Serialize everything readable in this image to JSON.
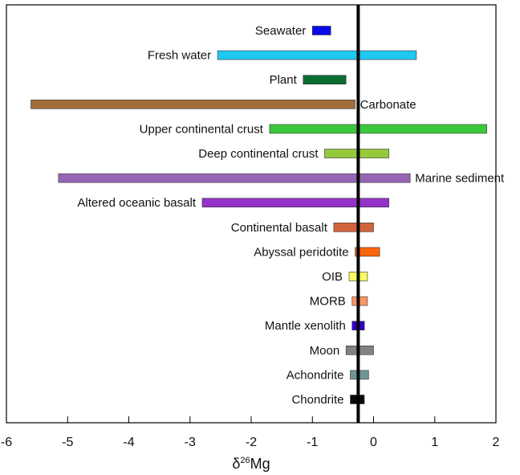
{
  "chart_data": {
    "type": "bar",
    "orientation": "horizontal-range",
    "title": "",
    "xlabel_base": "δ",
    "xlabel_sup": "26",
    "xlabel_rest": "Mg",
    "ylabel": "",
    "xlim": [
      -6,
      2
    ],
    "xticks": [
      "-6",
      "-5",
      "-4",
      "-3",
      "-2",
      "-1",
      "0",
      "1",
      "2"
    ],
    "reference_line": -0.25,
    "grid": false,
    "legend": "none",
    "ranges": [
      {
        "label": "Seawater",
        "min": -1.0,
        "max": -0.7,
        "color": "#0a0ae6",
        "label_side": "left"
      },
      {
        "label": "Fresh water",
        "min": -2.55,
        "max": 0.7,
        "color": "#1ec8f0",
        "label_side": "left"
      },
      {
        "label": "Plant",
        "min": -1.15,
        "max": -0.45,
        "color": "#0a6e32",
        "label_side": "left"
      },
      {
        "label": "Carbonate",
        "min": -5.6,
        "max": -0.3,
        "color": "#a06e3c",
        "label_side": "right"
      },
      {
        "label": "Upper continental crust",
        "min": -1.7,
        "max": 1.85,
        "color": "#3cc83c",
        "label_side": "left"
      },
      {
        "label": "Deep continental crust",
        "min": -0.8,
        "max": 0.25,
        "color": "#96c83c",
        "label_side": "left"
      },
      {
        "label": "Marine sediment",
        "min": -5.15,
        "max": 0.6,
        "color": "#9664b4",
        "label_side": "right"
      },
      {
        "label": "Altered oceanic basalt",
        "min": -2.8,
        "max": 0.25,
        "color": "#9632c8",
        "label_side": "left"
      },
      {
        "label": "Continental basalt",
        "min": -0.65,
        "max": 0.0,
        "color": "#d2643c",
        "label_side": "left"
      },
      {
        "label": "Abyssal peridotite",
        "min": -0.3,
        "max": 0.1,
        "color": "#fa640a",
        "label_side": "left"
      },
      {
        "label": "OIB",
        "min": -0.4,
        "max": -0.1,
        "color": "#fafa64",
        "label_side": "left"
      },
      {
        "label": "MORB",
        "min": -0.35,
        "max": -0.1,
        "color": "#fa9664",
        "label_side": "left"
      },
      {
        "label": "Mantle xenolith",
        "min": -0.35,
        "max": -0.15,
        "color": "#3200c8",
        "label_side": "left"
      },
      {
        "label": "Moon",
        "min": -0.45,
        "max": 0.0,
        "color": "#828282",
        "label_side": "left"
      },
      {
        "label": "Achondrite",
        "min": -0.38,
        "max": -0.08,
        "color": "#6e9696",
        "label_side": "left"
      },
      {
        "label": "Chondrite",
        "min": -0.38,
        "max": -0.15,
        "color": "#0a0a0a",
        "label_side": "left"
      }
    ]
  }
}
